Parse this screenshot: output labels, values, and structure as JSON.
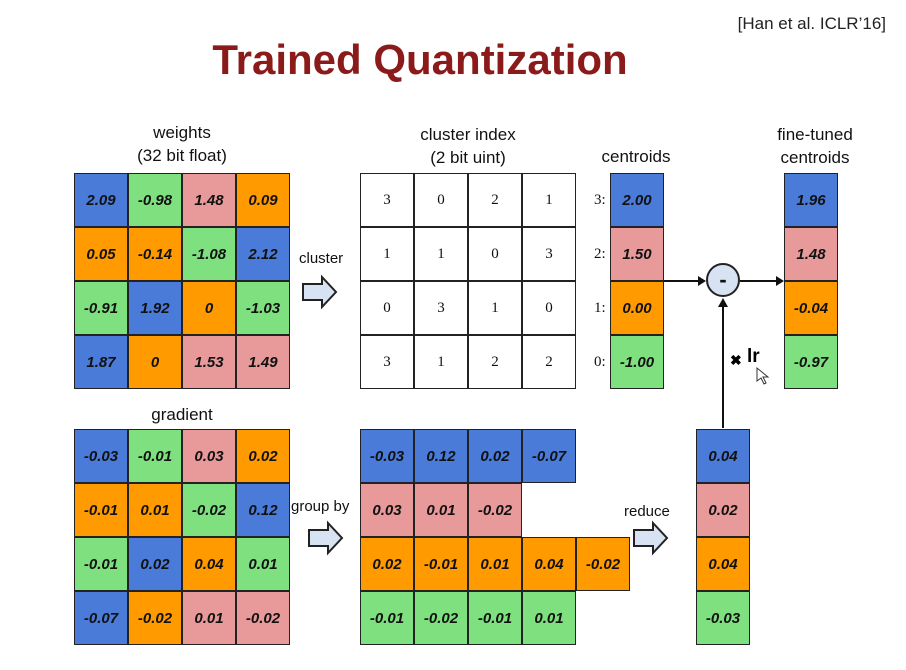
{
  "title": "Trained Quantization",
  "citation": "[Han et al. ICLR’16]",
  "labels": {
    "weights_line1": "weights",
    "weights_line2": "(32 bit float)",
    "cluster_index_line1": "cluster index",
    "cluster_index_line2": "(2 bit uint)",
    "centroids": "centroids",
    "fine_tuned_line1": "fine-tuned",
    "fine_tuned_line2": "centroids",
    "gradient": "gradient",
    "cluster_arrow": "cluster",
    "group_by_arrow": "group by",
    "reduce_arrow": "reduce",
    "lr": "lr",
    "times": "✖",
    "minus": "-"
  },
  "colors": {
    "blue": "#4a7bd8",
    "green": "#7fe07f",
    "pink": "#e89a9a",
    "orange": "#ff9a00",
    "title": "#8b1a1a"
  },
  "weights": {
    "values": [
      [
        "2.09",
        "-0.98",
        "1.48",
        "0.09"
      ],
      [
        "0.05",
        "-0.14",
        "-1.08",
        "2.12"
      ],
      [
        "-0.91",
        "1.92",
        "0",
        "-1.03"
      ],
      [
        "1.87",
        "0",
        "1.53",
        "1.49"
      ]
    ],
    "colors": [
      [
        "blue",
        "green",
        "pink",
        "orange"
      ],
      [
        "orange",
        "orange",
        "green",
        "blue"
      ],
      [
        "green",
        "blue",
        "orange",
        "green"
      ],
      [
        "blue",
        "orange",
        "pink",
        "pink"
      ]
    ]
  },
  "cluster_index": [
    [
      "3",
      "0",
      "2",
      "1"
    ],
    [
      "1",
      "1",
      "0",
      "3"
    ],
    [
      "0",
      "3",
      "1",
      "0"
    ],
    [
      "3",
      "1",
      "2",
      "2"
    ]
  ],
  "centroids": [
    {
      "index": "3:",
      "value": "2.00",
      "color": "blue"
    },
    {
      "index": "2:",
      "value": "1.50",
      "color": "pink"
    },
    {
      "index": "1:",
      "value": "0.00",
      "color": "orange"
    },
    {
      "index": "0:",
      "value": "-1.00",
      "color": "green"
    }
  ],
  "fine_tuned": [
    {
      "value": "1.96",
      "color": "blue"
    },
    {
      "value": "1.48",
      "color": "pink"
    },
    {
      "value": "-0.04",
      "color": "orange"
    },
    {
      "value": "-0.97",
      "color": "green"
    }
  ],
  "gradient": {
    "values": [
      [
        "-0.03",
        "-0.01",
        "0.03",
        "0.02"
      ],
      [
        "-0.01",
        "0.01",
        "-0.02",
        "0.12"
      ],
      [
        "-0.01",
        "0.02",
        "0.04",
        "0.01"
      ],
      [
        "-0.07",
        "-0.02",
        "0.01",
        "-0.02"
      ]
    ],
    "colors": [
      [
        "blue",
        "green",
        "pink",
        "orange"
      ],
      [
        "orange",
        "orange",
        "green",
        "blue"
      ],
      [
        "green",
        "blue",
        "orange",
        "green"
      ],
      [
        "blue",
        "orange",
        "pink",
        "pink"
      ]
    ]
  },
  "grouped": [
    {
      "color": "blue",
      "values": [
        "-0.03",
        "0.12",
        "0.02",
        "-0.07"
      ]
    },
    {
      "color": "pink",
      "values": [
        "0.03",
        "0.01",
        "-0.02"
      ]
    },
    {
      "color": "orange",
      "values": [
        "0.02",
        "-0.01",
        "0.01",
        "0.04",
        "-0.02"
      ]
    },
    {
      "color": "green",
      "values": [
        "-0.01",
        "-0.02",
        "-0.01",
        "0.01"
      ]
    }
  ],
  "reduced": [
    {
      "value": "0.04",
      "color": "blue"
    },
    {
      "value": "0.02",
      "color": "pink"
    },
    {
      "value": "0.04",
      "color": "orange"
    },
    {
      "value": "-0.03",
      "color": "green"
    }
  ]
}
